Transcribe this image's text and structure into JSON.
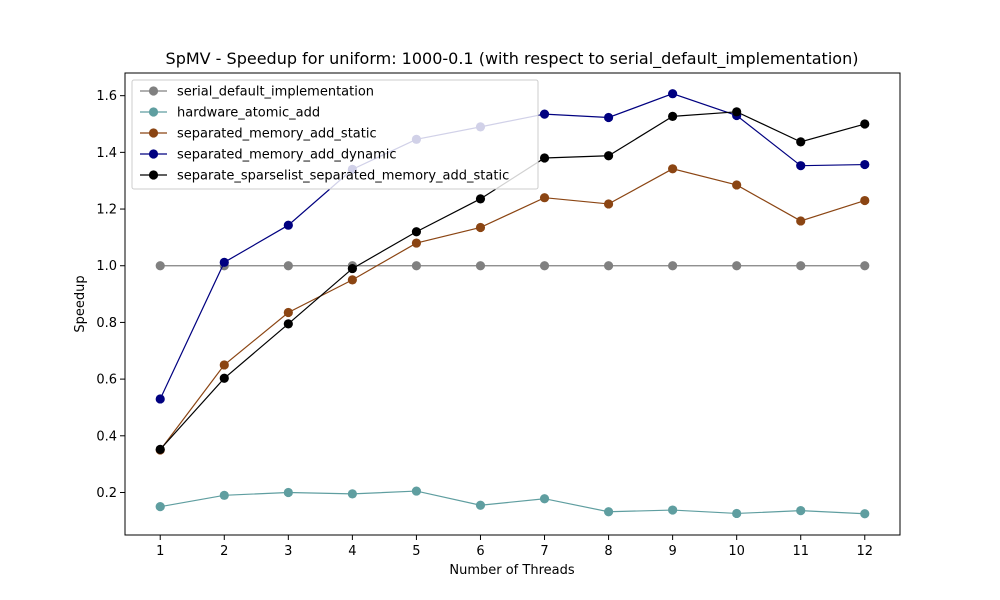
{
  "chart_data": {
    "type": "line",
    "title": "SpMV - Speedup for uniform: 1000-0.1 (with respect to serial_default_implementation)",
    "xlabel": "Number of Threads",
    "ylabel": "Speedup",
    "x": [
      1,
      2,
      3,
      4,
      5,
      6,
      7,
      8,
      9,
      10,
      11,
      12
    ],
    "xlim": [
      0.45,
      12.55
    ],
    "ylim": [
      0.05,
      1.68
    ],
    "yticks": [
      0.2,
      0.4,
      0.6,
      0.8,
      1.0,
      1.2,
      1.4,
      1.6
    ],
    "ytick_labels": [
      "0.2",
      "0.4",
      "0.6",
      "0.8",
      "1.0",
      "1.2",
      "1.4",
      "1.6"
    ],
    "xtick_labels": [
      "1",
      "2",
      "3",
      "4",
      "5",
      "6",
      "7",
      "8",
      "9",
      "10",
      "11",
      "12"
    ],
    "grid": false,
    "legend_position": "top-left",
    "series": [
      {
        "name": "serial_default_implementation",
        "color": "#808080",
        "values": [
          1.0,
          1.0,
          1.0,
          1.0,
          1.0,
          1.0,
          1.0,
          1.0,
          1.0,
          1.0,
          1.0,
          1.0
        ]
      },
      {
        "name": "hardware_atomic_add",
        "color": "#5f9ea0",
        "values": [
          0.15,
          0.19,
          0.2,
          0.195,
          0.205,
          0.155,
          0.178,
          0.132,
          0.138,
          0.126,
          0.136,
          0.125
        ]
      },
      {
        "name": "separated_memory_add_static",
        "color": "#8b4513",
        "values": [
          0.35,
          0.65,
          0.835,
          0.95,
          1.08,
          1.135,
          1.24,
          1.218,
          1.342,
          1.285,
          1.158,
          1.23
        ]
      },
      {
        "name": "separated_memory_add_dynamic",
        "color": "#000080",
        "values": [
          0.53,
          1.012,
          1.143,
          1.34,
          1.446,
          1.49,
          1.535,
          1.523,
          1.607,
          1.53,
          1.353,
          1.357
        ]
      },
      {
        "name": "separate_sparselist_separated_memory_add_static",
        "color": "#000000",
        "values": [
          0.352,
          0.603,
          0.795,
          0.99,
          1.12,
          1.236,
          1.38,
          1.388,
          1.527,
          1.543,
          1.437,
          1.5
        ]
      }
    ]
  }
}
